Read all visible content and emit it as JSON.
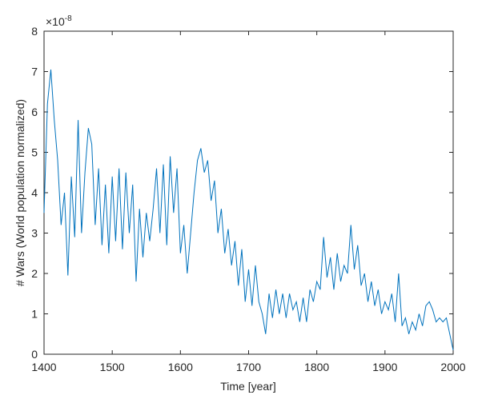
{
  "chart_data": {
    "type": "line",
    "xlabel": "Time [year]",
    "ylabel": "# Wars (World population normalized)",
    "y_scale_base": "×10",
    "y_scale_exponent": "-8",
    "xlim": [
      1400,
      2000
    ],
    "xticks": [
      1400,
      1500,
      1600,
      1700,
      1800,
      1900,
      2000
    ],
    "ylim": [
      0,
      8
    ],
    "yticks": [
      0,
      1,
      2,
      3,
      4,
      5,
      6,
      7,
      8
    ],
    "grid": false,
    "x": [
      1400,
      1405,
      1410,
      1415,
      1420,
      1425,
      1430,
      1435,
      1440,
      1445,
      1450,
      1455,
      1460,
      1465,
      1470,
      1475,
      1480,
      1485,
      1490,
      1495,
      1500,
      1505,
      1510,
      1515,
      1520,
      1525,
      1530,
      1535,
      1540,
      1545,
      1550,
      1555,
      1560,
      1565,
      1570,
      1575,
      1580,
      1585,
      1590,
      1595,
      1600,
      1605,
      1610,
      1615,
      1620,
      1625,
      1630,
      1635,
      1640,
      1645,
      1650,
      1655,
      1660,
      1665,
      1670,
      1675,
      1680,
      1685,
      1690,
      1695,
      1700,
      1705,
      1710,
      1715,
      1720,
      1725,
      1730,
      1735,
      1740,
      1745,
      1750,
      1755,
      1760,
      1765,
      1770,
      1775,
      1780,
      1785,
      1790,
      1795,
      1800,
      1805,
      1810,
      1815,
      1820,
      1825,
      1830,
      1835,
      1840,
      1845,
      1850,
      1855,
      1860,
      1865,
      1870,
      1875,
      1880,
      1885,
      1890,
      1895,
      1900,
      1905,
      1910,
      1915,
      1920,
      1925,
      1930,
      1935,
      1940,
      1945,
      1950,
      1955,
      1960,
      1965,
      1970,
      1975,
      1980,
      1985,
      1990,
      1995,
      2000
    ],
    "series": [
      {
        "color": "#0072bd",
        "values": [
          3.5,
          6.2,
          7.05,
          5.8,
          4.8,
          3.2,
          4.0,
          1.95,
          4.4,
          2.9,
          5.8,
          3.0,
          4.5,
          5.6,
          5.2,
          3.2,
          4.6,
          2.7,
          4.2,
          2.5,
          4.4,
          2.8,
          4.6,
          2.6,
          4.5,
          3.0,
          4.2,
          1.8,
          3.6,
          2.4,
          3.5,
          2.8,
          3.6,
          4.6,
          3.0,
          4.7,
          2.7,
          4.9,
          3.5,
          4.6,
          2.5,
          3.2,
          2.0,
          3.0,
          4.0,
          4.8,
          5.1,
          4.5,
          4.8,
          3.8,
          4.3,
          3.0,
          3.6,
          2.5,
          3.1,
          2.2,
          2.8,
          1.7,
          2.6,
          1.3,
          2.1,
          1.2,
          2.2,
          1.3,
          1.0,
          0.5,
          1.5,
          0.9,
          1.6,
          1.0,
          1.5,
          0.9,
          1.5,
          1.1,
          1.3,
          0.8,
          1.4,
          0.8,
          1.6,
          1.3,
          1.8,
          1.6,
          2.9,
          1.9,
          2.4,
          1.6,
          2.5,
          1.8,
          2.2,
          2.0,
          3.2,
          2.1,
          2.7,
          1.7,
          2.0,
          1.3,
          1.8,
          1.2,
          1.6,
          1.0,
          1.3,
          1.1,
          1.5,
          0.8,
          2.0,
          0.7,
          0.9,
          0.5,
          0.8,
          0.6,
          1.0,
          0.7,
          1.2,
          1.3,
          1.1,
          0.8,
          0.9,
          0.8,
          0.9,
          0.5,
          0.1
        ]
      }
    ]
  }
}
